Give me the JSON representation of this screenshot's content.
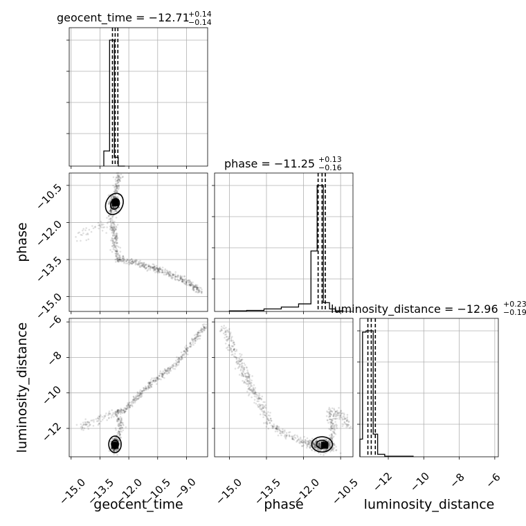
{
  "chart_data": {
    "type": "scatter",
    "parameters": [
      {
        "key": "geocent_time",
        "label": "geocent_time",
        "title_prefix": "geocent_time = ",
        "median": "−12.71",
        "plus": "+0.14",
        "minus": "−0.14",
        "range": [
          -15.1,
          -7.9
        ],
        "ticks": [
          -15.0,
          -13.5,
          -12.0,
          -10.5,
          -9.0
        ]
      },
      {
        "key": "phase",
        "label": "phase",
        "title_prefix": "phase = ",
        "median": "−11.25",
        "plus": "+0.13",
        "minus": "−0.16",
        "range": [
          -15.6,
          -10.0
        ],
        "ticks": [
          -15.0,
          -13.5,
          -12.0,
          -10.5
        ]
      },
      {
        "key": "luminosity_distance",
        "label": "luminosity_distance",
        "title_prefix": "luminosity_distance = ",
        "median": "−12.96",
        "plus": "+0.23",
        "minus": "−0.19",
        "range": [
          -13.6,
          -5.8
        ],
        "ticks": [
          -12,
          -10,
          -8,
          -6
        ]
      }
    ],
    "histograms": [
      {
        "param": "geocent_time",
        "bin_edges": [
          -13.3,
          -13.0,
          -12.75,
          -12.55,
          -12.2
        ],
        "counts": [
          0.12,
          1.0,
          0.07,
          0.0
        ],
        "quantiles": [
          -12.85,
          -12.71,
          -12.57
        ]
      },
      {
        "param": "phase",
        "bin_edges": [
          -15.0,
          -14.3,
          -13.6,
          -12.9,
          -12.2,
          -11.7,
          -11.45,
          -11.2,
          -10.95,
          -10.7,
          -10.4
        ],
        "counts": [
          0.005,
          0.008,
          0.02,
          0.035,
          0.06,
          0.48,
          1.0,
          0.07,
          0.02,
          0.005
        ],
        "quantiles": [
          -11.41,
          -11.25,
          -11.12
        ]
      },
      {
        "param": "luminosity_distance",
        "bin_edges": [
          -13.6,
          -13.45,
          -13.25,
          -12.85,
          -12.6,
          -12.2,
          -10.6
        ],
        "counts": [
          0.14,
          0.99,
          1.0,
          0.18,
          0.02,
          0.005
        ],
        "quantiles": [
          -13.15,
          -12.96,
          -12.73
        ]
      }
    ],
    "ticks_display": {
      "x_geocent": [
        "−15.0",
        "−13.5",
        "−12.0",
        "−10.5",
        "−9.0"
      ],
      "x_phase": [
        "−15.0",
        "−13.5",
        "−12.0",
        "−10.5"
      ],
      "x_lum": [
        "−12",
        "−10",
        "−8",
        "−6"
      ],
      "y_phase": [
        "−10.5",
        "−12.0",
        "−13.5",
        "−15.0"
      ],
      "y_lum": [
        "−6",
        "−8",
        "−10",
        "−12"
      ]
    }
  }
}
